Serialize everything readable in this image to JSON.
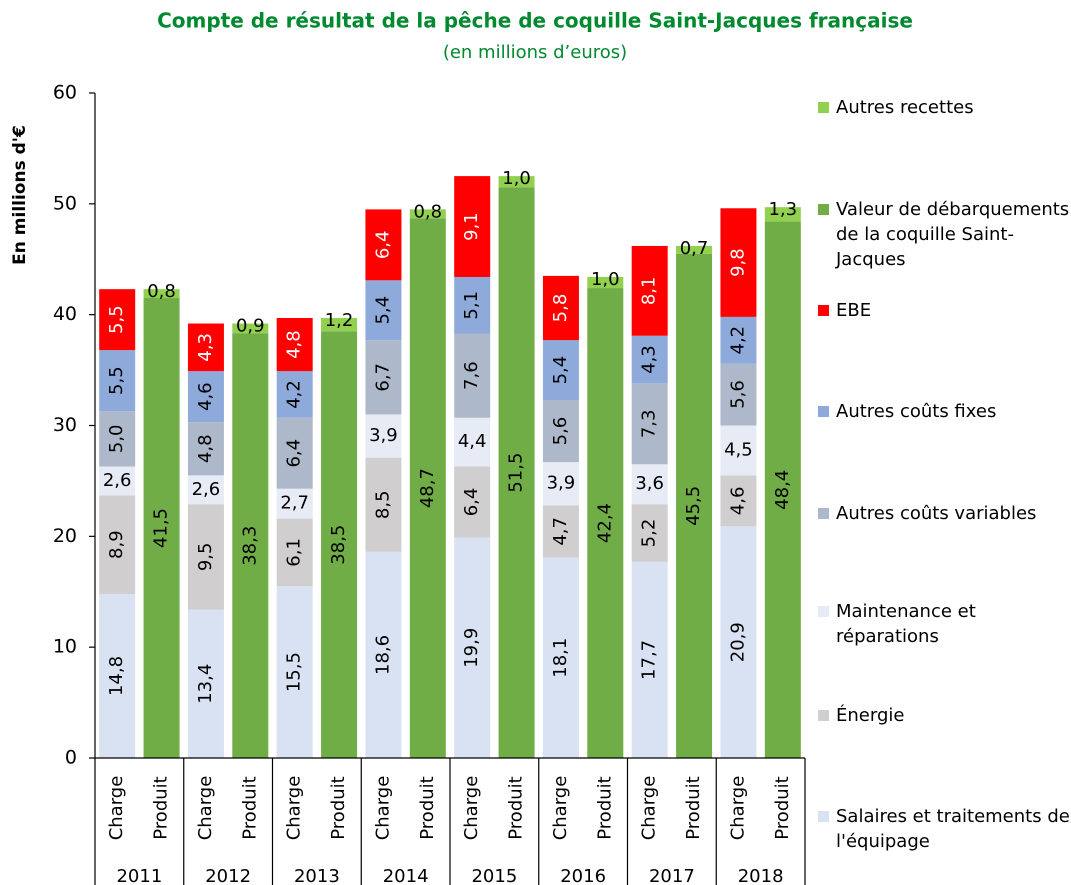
{
  "chart_data": {
    "type": "stacked_bar",
    "title": "Compte de résultat de la pêche de coquille Saint-Jacques française",
    "subtitle": "(en millions d’euros)",
    "y_label": "En millions d'€",
    "categories": [
      "Charge",
      "Produit",
      "Charge",
      "Produit",
      "Charge",
      "Produit",
      "Charge",
      "Produit",
      "Charge",
      "Produit",
      "Charge",
      "Produit",
      "Charge",
      "Produit",
      "Charge",
      "Produit"
    ],
    "groups": [
      "2011",
      "2012",
      "2013",
      "2014",
      "2015",
      "2016",
      "2017",
      "2018"
    ],
    "ylim": [
      0,
      60
    ],
    "yticks": [
      0,
      10,
      20,
      30,
      40,
      50,
      60
    ],
    "grid": false,
    "legend": "right",
    "series": [
      {
        "name": "Salaires et traitements de l'équipage",
        "color": "#d9e2f3",
        "label_color": "#000000",
        "label_rotated": true,
        "values": [
          14.8,
          null,
          13.4,
          null,
          15.5,
          null,
          18.6,
          null,
          19.9,
          null,
          18.1,
          null,
          17.7,
          null,
          20.9,
          null
        ],
        "value_labels": [
          "14,8",
          null,
          "13,4",
          null,
          "15,5",
          null,
          "18,6",
          null,
          "19,9",
          null,
          "18,1",
          null,
          "17,7",
          null,
          "20,9",
          null
        ]
      },
      {
        "name": "Énergie",
        "color": "#d0cece",
        "label_color": "#000000",
        "label_rotated": true,
        "values": [
          8.9,
          null,
          9.5,
          null,
          6.1,
          null,
          8.5,
          null,
          6.4,
          null,
          4.7,
          null,
          5.2,
          null,
          4.6,
          null
        ],
        "value_labels": [
          "8,9",
          null,
          "9,5",
          null,
          "6,1",
          null,
          "8,5",
          null,
          "6,4",
          null,
          "4,7",
          null,
          "5,2",
          null,
          "4,6",
          null
        ]
      },
      {
        "name": "Maintenance et réparations",
        "color": "#e6ebf5",
        "label_color": "#000000",
        "label_rotated": false,
        "values": [
          2.6,
          null,
          2.6,
          null,
          2.7,
          null,
          3.9,
          null,
          4.4,
          null,
          3.9,
          null,
          3.6,
          null,
          4.5,
          null
        ],
        "value_labels": [
          "2,6",
          null,
          "2,6",
          null,
          "2,7",
          null,
          "3,9",
          null,
          "4,4",
          null,
          "3,9",
          null,
          "3,6",
          null,
          "4,5",
          null
        ]
      },
      {
        "name": "Autres coûts variables",
        "color": "#adb9ca",
        "label_color": "#000000",
        "label_rotated": true,
        "values": [
          5.0,
          null,
          4.8,
          null,
          6.4,
          null,
          6.7,
          null,
          7.6,
          null,
          5.6,
          null,
          7.3,
          null,
          5.6,
          null
        ],
        "value_labels": [
          "5,0",
          null,
          "4,8",
          null,
          "6,4",
          null,
          "6,7",
          null,
          "7,6",
          null,
          "5,6",
          null,
          "7,3",
          null,
          "5,6",
          null
        ]
      },
      {
        "name": "Autres coûts fixes",
        "color": "#8eaadb",
        "label_color": "#000000",
        "label_rotated": true,
        "values": [
          5.5,
          null,
          4.6,
          null,
          4.2,
          null,
          5.4,
          null,
          5.1,
          null,
          5.4,
          null,
          4.3,
          null,
          4.2,
          null
        ],
        "value_labels": [
          "5,5",
          null,
          "4,6",
          null,
          "4,2",
          null,
          "5,4",
          null,
          "5,1",
          null,
          "5,4",
          null,
          "4,3",
          null,
          "4,2",
          null
        ]
      },
      {
        "name": "EBE",
        "color": "#ff0000",
        "label_color": "#ffffff",
        "label_rotated": true,
        "values": [
          5.5,
          null,
          4.3,
          null,
          4.8,
          null,
          6.4,
          null,
          9.1,
          null,
          5.8,
          null,
          8.1,
          null,
          9.8,
          null
        ],
        "value_labels": [
          "5,5",
          null,
          "4,3",
          null,
          "4,8",
          null,
          "6,4",
          null,
          "9,1",
          null,
          "5,8",
          null,
          "8,1",
          null,
          "9,8",
          null
        ]
      },
      {
        "name": "Valeur de débarquements de la coquille Saint-Jacques",
        "color": "#70ad47",
        "label_color": "#000000",
        "label_rotated": true,
        "values": [
          null,
          41.5,
          null,
          38.3,
          null,
          38.5,
          null,
          48.7,
          null,
          51.5,
          null,
          42.4,
          null,
          45.5,
          null,
          48.4
        ],
        "value_labels": [
          null,
          "41,5",
          null,
          "38,3",
          null,
          "38,5",
          null,
          "48,7",
          null,
          "51,5",
          null,
          "42,4",
          null,
          "45,5",
          null,
          "48,4"
        ]
      },
      {
        "name": "Autres recettes",
        "color": "#92d050",
        "label_color": "#000000",
        "label_rotated": false,
        "label_on_top": true,
        "values": [
          null,
          0.8,
          null,
          0.9,
          null,
          1.2,
          null,
          0.8,
          null,
          1.0,
          null,
          1.0,
          null,
          0.7,
          null,
          1.3
        ],
        "value_labels": [
          null,
          "0,8",
          null,
          "0,9",
          null,
          "1,2",
          null,
          "0,8",
          null,
          "1,0",
          null,
          "1,0",
          null,
          "0,7",
          null,
          "1,3"
        ]
      }
    ]
  }
}
